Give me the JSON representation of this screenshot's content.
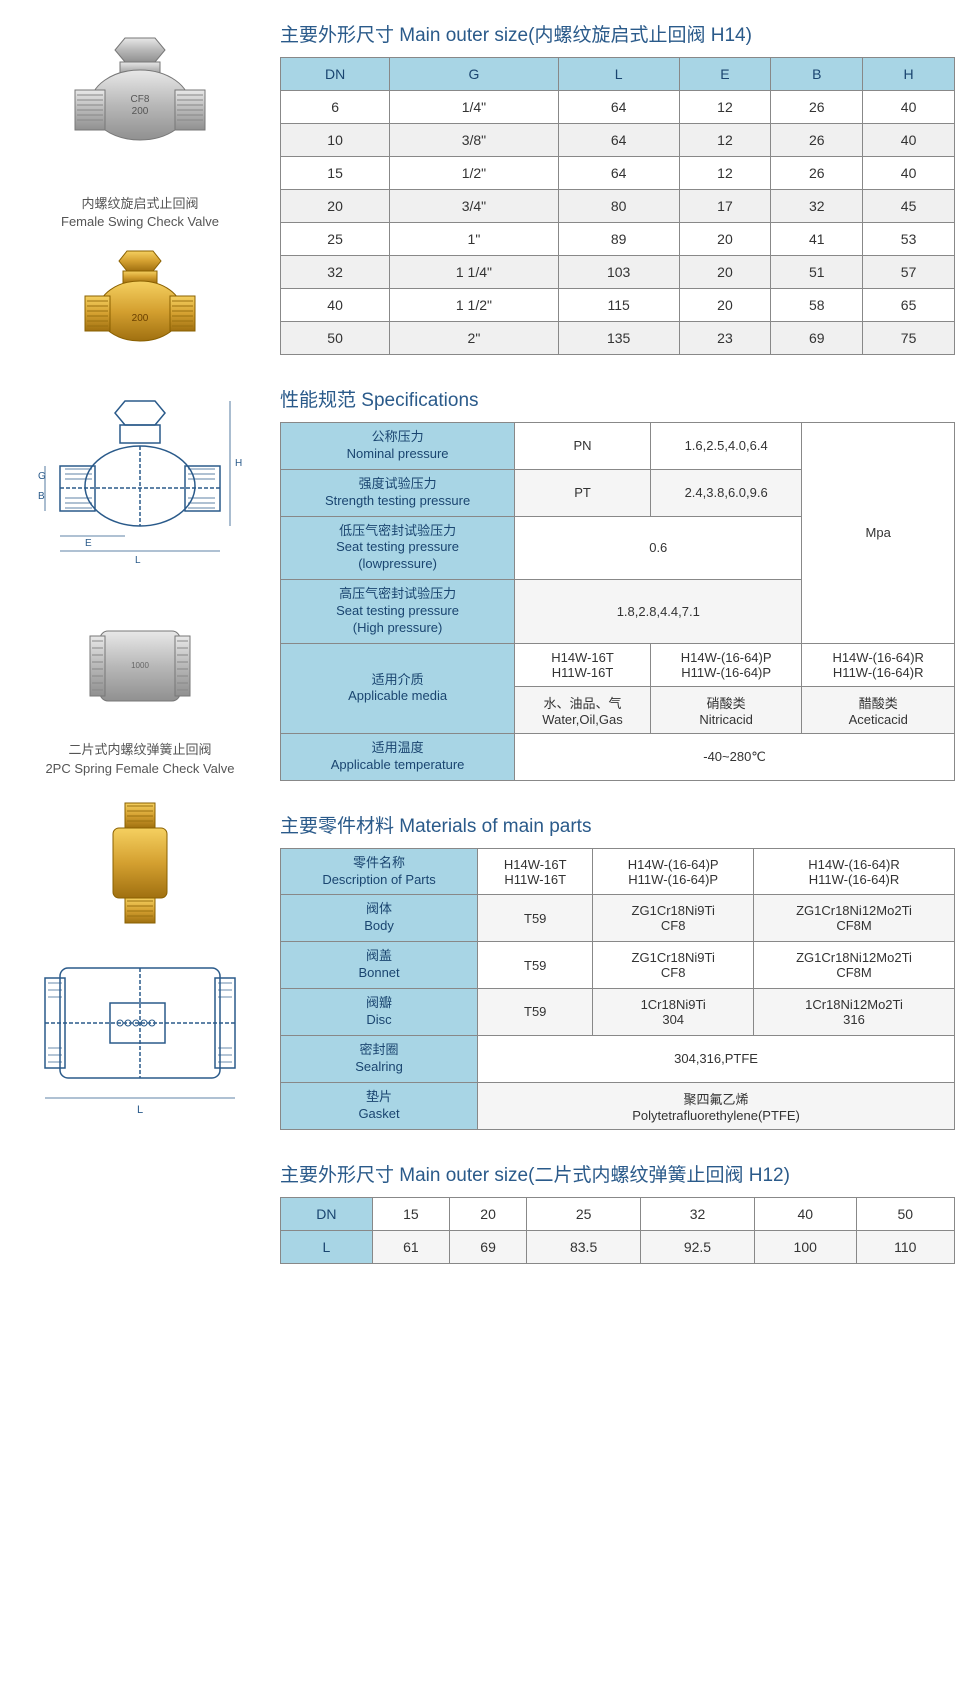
{
  "section1": {
    "title": "主要外形尺寸 Main outer size(内螺纹旋启式止回阀 H14)",
    "headers": [
      "DN",
      "G",
      "L",
      "E",
      "B",
      "H"
    ],
    "rows": [
      [
        "6",
        "1/4\"",
        "64",
        "12",
        "26",
        "40"
      ],
      [
        "10",
        "3/8\"",
        "64",
        "12",
        "26",
        "40"
      ],
      [
        "15",
        "1/2\"",
        "64",
        "12",
        "26",
        "40"
      ],
      [
        "20",
        "3/4\"",
        "80",
        "17",
        "32",
        "45"
      ],
      [
        "25",
        "1\"",
        "89",
        "20",
        "41",
        "53"
      ],
      [
        "32",
        "1 1/4\"",
        "103",
        "20",
        "51",
        "57"
      ],
      [
        "40",
        "1 1/2\"",
        "115",
        "20",
        "58",
        "65"
      ],
      [
        "50",
        "2\"",
        "135",
        "23",
        "69",
        "75"
      ]
    ]
  },
  "section2": {
    "title": "性能规范 Specifications",
    "rows": {
      "r1_label_cn": "公称压力",
      "r1_label_en": "Nominal pressure",
      "r1_code": "PN",
      "r1_val": "1.6,2.5,4.0,6.4",
      "r2_label_cn": "强度试验压力",
      "r2_label_en": "Strength testing pressure",
      "r2_code": "PT",
      "r2_val": "2.4,3.8,6.0,9.6",
      "r3_label_cn": "低压气密封试验压力",
      "r3_label_en1": "Seat testing pressure",
      "r3_label_en2": "(lowpressure)",
      "r3_val": "0.6",
      "r4_label_cn": "高压气密封试验压力",
      "r4_label_en1": "Seat testing pressure",
      "r4_label_en2": "(High pressure)",
      "r4_val": "1.8,2.8,4.4,7.1",
      "r5_label_cn": "适用介质",
      "r5_label_en": "Applicable media",
      "r5_c1a": "H14W-16T",
      "r5_c1b": "H11W-16T",
      "r5_c2a": "H14W-(16-64)P",
      "r5_c2b": "H11W-(16-64)P",
      "r5_c3a": "H14W-(16-64)R",
      "r5_c3b": "H11W-(16-64)R",
      "r5_d1_cn": "水、油品、气",
      "r5_d1_en": "Water,Oil,Gas",
      "r5_d2_cn": "硝酸类",
      "r5_d2_en": "Nitricacid",
      "r5_d3_cn": "醋酸类",
      "r5_d3_en": "Aceticacid",
      "r6_label_cn": "适用温度",
      "r6_label_en": "Applicable temperature",
      "r6_val": "-40~280℃",
      "unit": "Mpa"
    }
  },
  "section3": {
    "title": "主要零件材料 Materials of main parts",
    "h1_cn": "零件名称",
    "h1_en": "Description of Parts",
    "h2a": "H14W-16T",
    "h2b": "H11W-16T",
    "h3a": "H14W-(16-64)P",
    "h3b": "H11W-(16-64)P",
    "h4a": "H14W-(16-64)R",
    "h4b": "H11W-(16-64)R",
    "r1_cn": "阀体",
    "r1_en": "Body",
    "r1_v1": "T59",
    "r1_v2a": "ZG1Cr18Ni9Ti",
    "r1_v2b": "CF8",
    "r1_v3a": "ZG1Cr18Ni12Mo2Ti",
    "r1_v3b": "CF8M",
    "r2_cn": "阀盖",
    "r2_en": "Bonnet",
    "r2_v1": "T59",
    "r2_v2a": "ZG1Cr18Ni9Ti",
    "r2_v2b": "CF8",
    "r2_v3a": "ZG1Cr18Ni12Mo2Ti",
    "r2_v3b": "CF8M",
    "r3_cn": "阀瓣",
    "r3_en": "Disc",
    "r3_v1": "T59",
    "r3_v2a": "1Cr18Ni9Ti",
    "r3_v2b": "304",
    "r3_v3a": "1Cr18Ni12Mo2Ti",
    "r3_v3b": "316",
    "r4_cn": "密封圈",
    "r4_en": "Sealring",
    "r4_val": "304,316,PTFE",
    "r5_cn": "垫片",
    "r5_en": "Gasket",
    "r5_val_cn": "聚四氟乙烯",
    "r5_val_en": "Polytetrafluorethylene(PTFE)"
  },
  "section4": {
    "title": "主要外形尺寸 Main outer size(二片式内螺纹弹簧止回阀 H12)",
    "h1": "DN",
    "h2": "L",
    "r1": [
      "15",
      "20",
      "25",
      "32",
      "40",
      "50"
    ],
    "r2": [
      "61",
      "69",
      "83.5",
      "92.5",
      "100",
      "110"
    ]
  },
  "captions": {
    "c1_cn": "内螺纹旋启式止回阀",
    "c1_en": "Female Swing Check Valve",
    "c2_cn": "二片式内螺纹弹簧止回阀",
    "c2_en": "2PC Spring Female Check Valve"
  }
}
